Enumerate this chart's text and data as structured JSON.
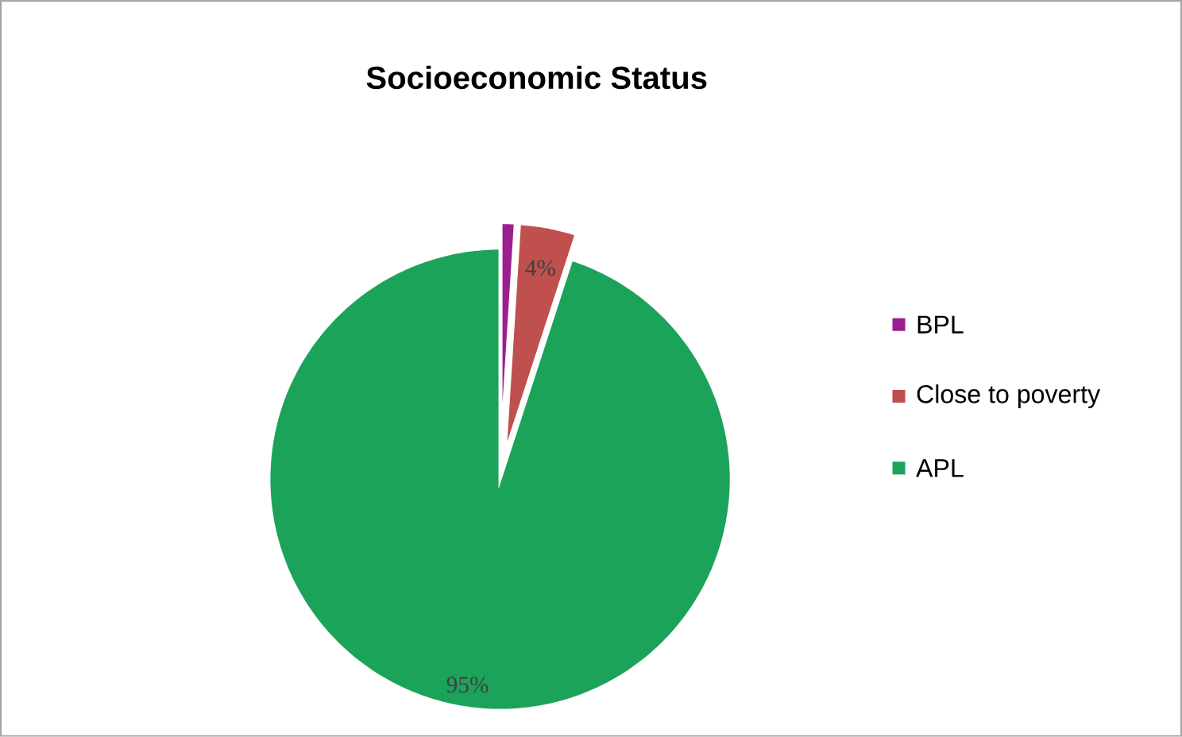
{
  "chart_data": {
    "type": "pie",
    "title": "Socioeconomic Status",
    "categories": [
      "BPL",
      "Close to poverty",
      "APL"
    ],
    "values": [
      1,
      4,
      95
    ],
    "colors": [
      "#9b1f8e",
      "#c0504d",
      "#1ca35a"
    ],
    "value_labels": [
      null,
      "4%",
      "95%"
    ],
    "legend": "right"
  }
}
